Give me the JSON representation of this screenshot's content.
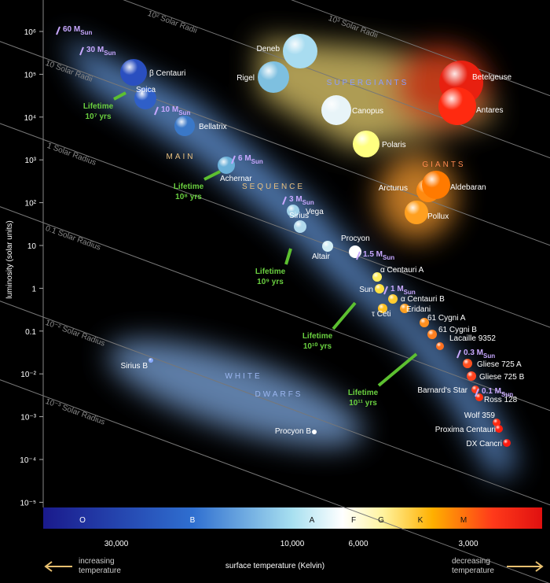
{
  "axes": {
    "y_label": "luminosity (solar units)",
    "x_label": "surface temperature (Kelvin)",
    "y_ticks": [
      "10⁶",
      "10⁵",
      "10⁴",
      "10³",
      "10²",
      "10",
      "1",
      "0.1",
      "10⁻²",
      "10⁻³",
      "10⁻⁴",
      "10⁻⁵"
    ],
    "x_ticks": [
      "30,000",
      "10,000",
      "6,000",
      "3,000"
    ],
    "left_note": [
      "increasing",
      "temperature"
    ],
    "right_note": [
      "decreasing",
      "temperature"
    ]
  },
  "spectral_classes": [
    "O",
    "B",
    "A",
    "F",
    "G",
    "K",
    "M"
  ],
  "radius_lines": [
    "10³ Solar Radii",
    "10² Solar Radii",
    "10 Solar Radii",
    "1 Solar Radius",
    "0.1 Solar Radius",
    "10⁻² Solar Radius",
    "10⁻³ Solar Radius"
  ],
  "regions": [
    "SUPERGIANTS",
    "GIANTS",
    "MAIN",
    "SEQUENCE",
    "WHITE",
    "DWARFS"
  ],
  "masses": [
    {
      "value": "60 M",
      "sub": "Sun"
    },
    {
      "value": "30 M",
      "sub": "Sun"
    },
    {
      "value": "10 M",
      "sub": "Sun"
    },
    {
      "value": "6 M",
      "sub": "Sun"
    },
    {
      "value": "3 M",
      "sub": "Sun"
    },
    {
      "value": "1.5 M",
      "sub": "Sun"
    },
    {
      "value": "1 M",
      "sub": "Sun"
    },
    {
      "value": "0.3 M",
      "sub": "Sun"
    },
    {
      "value": "0.1 M",
      "sub": "Sun"
    }
  ],
  "lifetimes": [
    {
      "label": "Lifetime",
      "years": "10⁷ yrs"
    },
    {
      "label": "Lifetime",
      "years": "10⁸ yrs"
    },
    {
      "label": "Lifetime",
      "years": "10⁹ yrs"
    },
    {
      "label": "Lifetime",
      "years": "10¹⁰ yrs"
    },
    {
      "label": "Lifetime",
      "years": "10¹¹ yrs"
    }
  ],
  "stars": [
    "β Centauri",
    "Spica",
    "Bellatrix",
    "Achernar",
    "Vega",
    "Sirius",
    "Altair",
    "Procyon",
    "α Centauri A",
    "Sun",
    "α Centauri B",
    "τ Ceti",
    "Eridani",
    "61 Cygni A",
    "61 Cygni B",
    "Lacaille 9352",
    "Gliese 725 A",
    "Gliese 725 B",
    "Barnard's Star",
    "Ross 128",
    "Wolf 359",
    "Proxima Centauri",
    "DX Cancri",
    "Deneb",
    "Rigel",
    "Canopus",
    "Polaris",
    "Betelgeuse",
    "Antares",
    "Arcturus",
    "Aldebaran",
    "Pollux",
    "Sirius B",
    "Procyon B"
  ]
}
